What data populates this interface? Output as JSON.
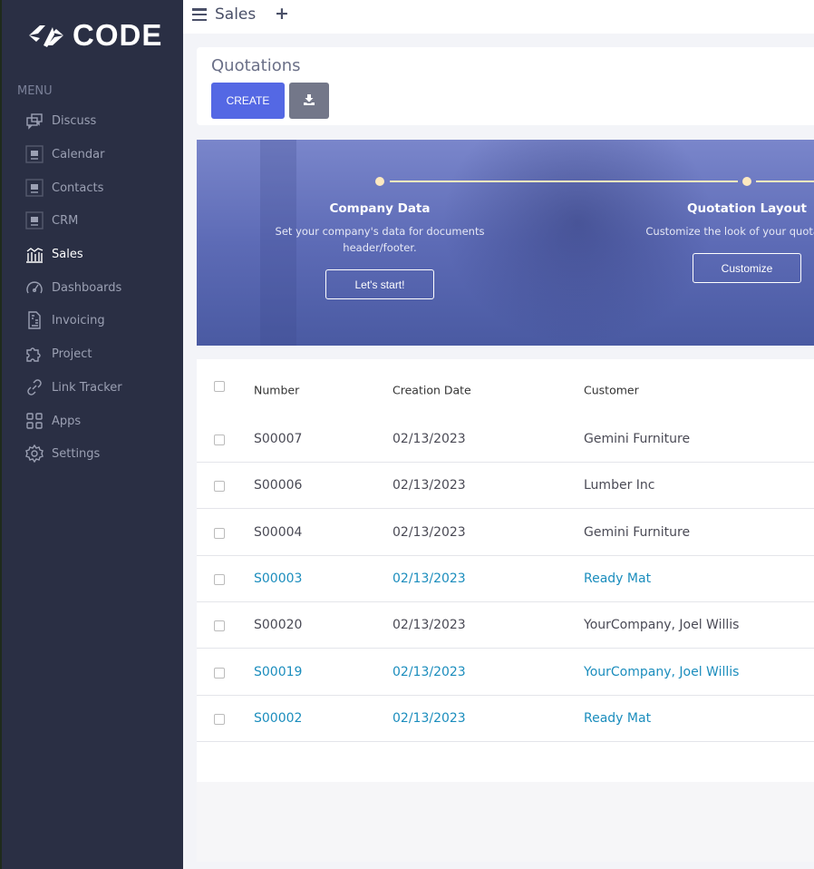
{
  "brand": {
    "logo_text": "CODE"
  },
  "sidebar": {
    "menu_label": "MENU",
    "items": [
      {
        "label": "Discuss",
        "icon": "chat-icon"
      },
      {
        "label": "Calendar",
        "icon": "app-placeholder-icon"
      },
      {
        "label": "Contacts",
        "icon": "app-placeholder-icon"
      },
      {
        "label": "CRM",
        "icon": "app-placeholder-icon"
      },
      {
        "label": "Sales",
        "icon": "bank-chart-icon",
        "active": true
      },
      {
        "label": "Dashboards",
        "icon": "speedometer-icon"
      },
      {
        "label": "Invoicing",
        "icon": "invoice-icon"
      },
      {
        "label": "Project",
        "icon": "puzzle-icon"
      },
      {
        "label": "Link Tracker",
        "icon": "link-icon"
      },
      {
        "label": "Apps",
        "icon": "grid-icon"
      },
      {
        "label": "Settings",
        "icon": "gear-icon"
      }
    ]
  },
  "topbar": {
    "app_name": "Sales",
    "plus": "+"
  },
  "header": {
    "title": "Quotations",
    "create_label": "CREATE"
  },
  "banner": {
    "steps": [
      {
        "title": "Company Data",
        "description": "Set your company's data for documents header/footer.",
        "button": "Let's start!"
      },
      {
        "title": "Quotation Layout",
        "description": "Customize the look of your quotations.",
        "button": "Customize"
      }
    ]
  },
  "table": {
    "columns": [
      "Number",
      "Creation Date",
      "Customer"
    ],
    "rows": [
      {
        "number": "S00007",
        "date": "02/13/2023",
        "customer": "Gemini Furniture",
        "highlight": false
      },
      {
        "number": "S00006",
        "date": "02/13/2023",
        "customer": "Lumber Inc",
        "highlight": false
      },
      {
        "number": "S00004",
        "date": "02/13/2023",
        "customer": "Gemini Furniture",
        "highlight": false
      },
      {
        "number": "S00003",
        "date": "02/13/2023",
        "customer": "Ready Mat",
        "highlight": true
      },
      {
        "number": "S00020",
        "date": "02/13/2023",
        "customer": "YourCompany, Joel Willis",
        "highlight": false
      },
      {
        "number": "S00019",
        "date": "02/13/2023",
        "customer": "YourCompany, Joel Willis",
        "highlight": true
      },
      {
        "number": "S00002",
        "date": "02/13/2023",
        "customer": "Ready Mat",
        "highlight": true
      }
    ]
  },
  "colors": {
    "sidebar": "#2a2f44",
    "accent": "#5468e4",
    "link": "#1b8dbd"
  }
}
